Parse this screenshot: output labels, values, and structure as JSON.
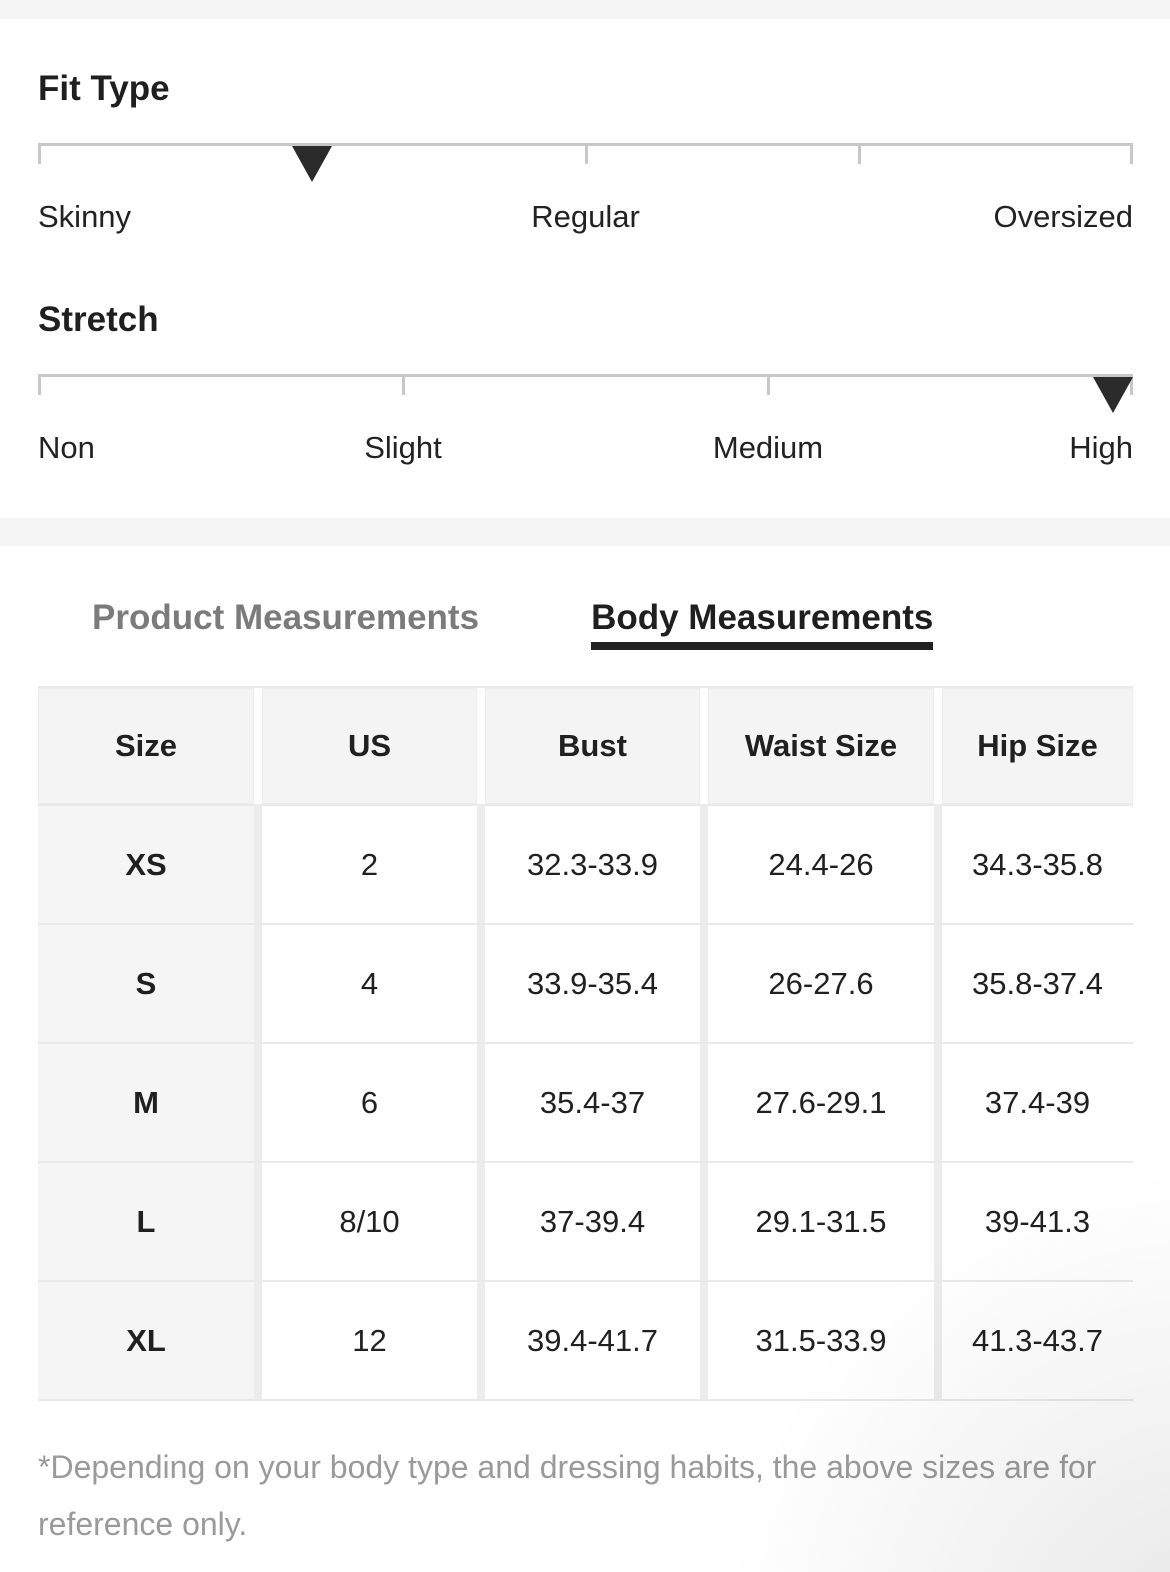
{
  "fit_type": {
    "title": "Fit Type",
    "marker_percent": 25,
    "labels": [
      {
        "text": "Skinny",
        "position_percent": 0
      },
      {
        "text": "Regular",
        "position_percent": 50
      },
      {
        "text": "Oversized",
        "position_percent": 100
      }
    ]
  },
  "stretch": {
    "title": "Stretch",
    "marker_percent": 100,
    "labels": [
      {
        "text": "Non",
        "position_percent": 0
      },
      {
        "text": "Slight",
        "position_percent": 33.3
      },
      {
        "text": "Medium",
        "position_percent": 66.7
      },
      {
        "text": "High",
        "position_percent": 100
      }
    ]
  },
  "tabs": {
    "product_label": "Product Measurements",
    "body_label": "Body Measurements",
    "active": "Body Measurements"
  },
  "size_table": {
    "columns": [
      "Size",
      "US",
      "Bust",
      "Waist Size",
      "Hip Size"
    ],
    "rows": [
      [
        "XS",
        "2",
        "32.3-33.9",
        "24.4-26",
        "34.3-35.8"
      ],
      [
        "S",
        "4",
        "33.9-35.4",
        "26-27.6",
        "35.8-37.4"
      ],
      [
        "M",
        "6",
        "35.4-37",
        "27.6-29.1",
        "37.4-39"
      ],
      [
        "L",
        "8/10",
        "37-39.4",
        "29.1-31.5",
        "39-41.3"
      ],
      [
        "XL",
        "12",
        "39.4-41.7",
        "31.5-33.9",
        "41.3-43.7"
      ]
    ]
  },
  "footnote": "*Depending on your body type and dressing habits, the above sizes are for reference only.",
  "colors": {
    "accent_dark": "#222222",
    "inactive_tab": "#7b7b7b",
    "track_gray": "#c8c8c8",
    "band_gray": "#f5f5f5",
    "footnote_gray": "#9a9a9a"
  }
}
